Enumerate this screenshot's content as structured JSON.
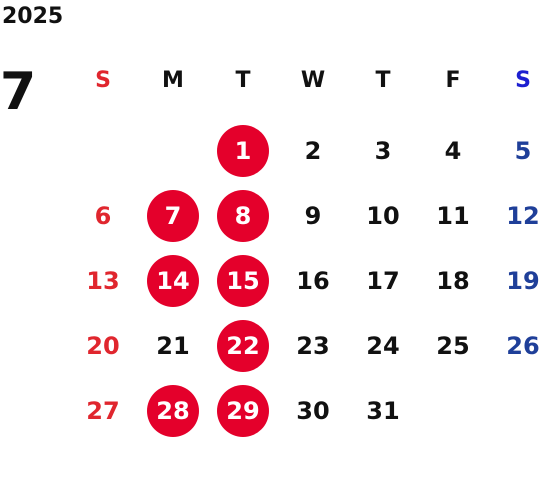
{
  "calendar": {
    "year": "2025",
    "month": "7",
    "weekdays": [
      "S",
      "M",
      "T",
      "W",
      "T",
      "F",
      "S"
    ],
    "weeks": [
      [
        "",
        "",
        "1",
        "2",
        "3",
        "4",
        "5"
      ],
      [
        "6",
        "7",
        "8",
        "9",
        "10",
        "11",
        "12"
      ],
      [
        "13",
        "14",
        "15",
        "16",
        "17",
        "18",
        "19"
      ],
      [
        "20",
        "21",
        "22",
        "23",
        "24",
        "25",
        "26"
      ],
      [
        "27",
        "28",
        "29",
        "30",
        "31",
        "",
        ""
      ]
    ],
    "marked_days": [
      "1",
      "7",
      "8",
      "14",
      "15",
      "22",
      "28",
      "29"
    ]
  },
  "colors": {
    "sunday": "#e0262e",
    "saturday_header": "#1d1fd0",
    "saturday": "#1f3f99",
    "marked_fill": "#e4002b",
    "marked_text": "#ffffff",
    "text": "#111111"
  }
}
